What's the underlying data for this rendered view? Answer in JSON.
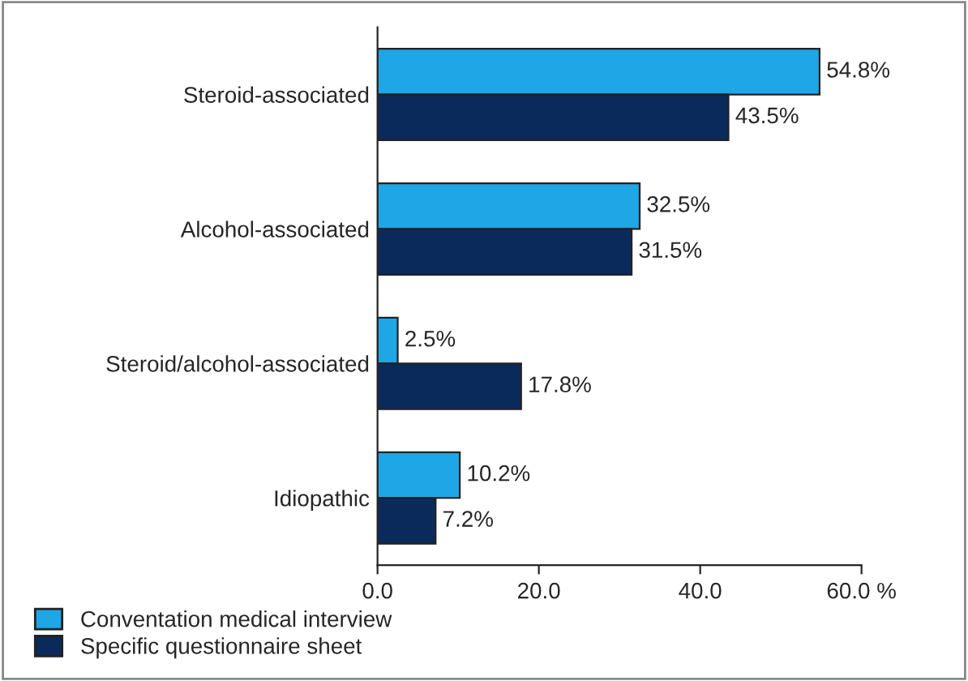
{
  "chart_data": {
    "type": "bar",
    "orientation": "horizontal",
    "categories": [
      "Steroid-associated",
      "Alcohol-associated",
      "Steroid/alcohol-associated",
      "Idiopathic"
    ],
    "series": [
      {
        "name": "Conventation medical interview",
        "color": "#1ea6e6",
        "values": [
          54.8,
          32.5,
          2.5,
          10.2
        ],
        "value_labels": [
          "54.8%",
          "32.5%",
          "2.5%",
          "10.2%"
        ]
      },
      {
        "name": "Specific questionnaire sheet",
        "color": "#0b2a5c",
        "values": [
          43.5,
          31.5,
          17.8,
          7.2
        ],
        "value_labels": [
          "43.5%",
          "31.5%",
          "17.8%",
          "7.2%"
        ]
      }
    ],
    "xlim": [
      0,
      60
    ],
    "xticks": [
      {
        "value": 0,
        "label": "0.0"
      },
      {
        "value": 20,
        "label": "20.0"
      },
      {
        "value": 40,
        "label": "40.0"
      },
      {
        "value": 60,
        "label": "60.0 %"
      }
    ],
    "legend": "bottom left",
    "grid": false
  }
}
